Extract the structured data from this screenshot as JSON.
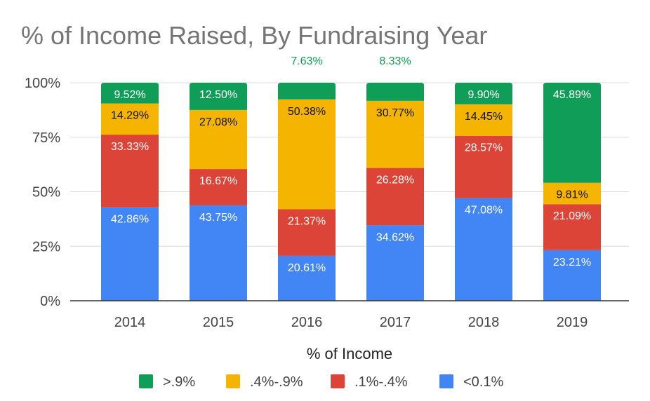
{
  "chart_data": {
    "type": "bar",
    "stacked": true,
    "title": "% of Income Raised, By Fundraising Year",
    "xlabel": "",
    "ylabel": "",
    "categories": [
      "2014",
      "2015",
      "2016",
      "2017",
      "2018",
      "2019"
    ],
    "y_ticks": [
      "0%",
      "25%",
      "50%",
      "75%",
      "100%"
    ],
    "ylim": [
      0,
      100
    ],
    "grid": true,
    "legend_title": "% of Income",
    "legend_position": "bottom",
    "series": [
      {
        "name": "<0.1%",
        "color": "#4285f4",
        "label_color": "#ffffff",
        "values": [
          42.86,
          43.75,
          20.61,
          34.62,
          47.08,
          23.21
        ],
        "labels": [
          "42.86%",
          "43.75%",
          "20.61%",
          "34.62%",
          "47.08%",
          "23.21%"
        ]
      },
      {
        "name": ".1%-.4%",
        "color": "#db4437",
        "label_color": "#ffffff",
        "values": [
          33.33,
          16.67,
          21.37,
          26.28,
          28.57,
          21.09
        ],
        "labels": [
          "33.33%",
          "16.67%",
          "21.37%",
          "26.28%",
          "28.57%",
          "21.09%"
        ]
      },
      {
        "name": ".4%-.9%",
        "color": "#f4b400",
        "label_color": "#111111",
        "values": [
          14.29,
          27.08,
          50.38,
          30.77,
          14.45,
          9.81
        ],
        "labels": [
          "14.29%",
          "27.08%",
          "50.38%",
          "30.77%",
          "14.45%",
          "9.81%"
        ]
      },
      {
        "name": ">.9%",
        "color": "#0f9d58",
        "label_color": "#ffffff",
        "values": [
          9.52,
          12.5,
          7.63,
          8.33,
          9.9,
          45.89
        ],
        "labels": [
          "9.52%",
          "12.50%",
          "7.63%",
          "8.33%",
          "9.90%",
          "45.89%"
        ]
      }
    ]
  }
}
